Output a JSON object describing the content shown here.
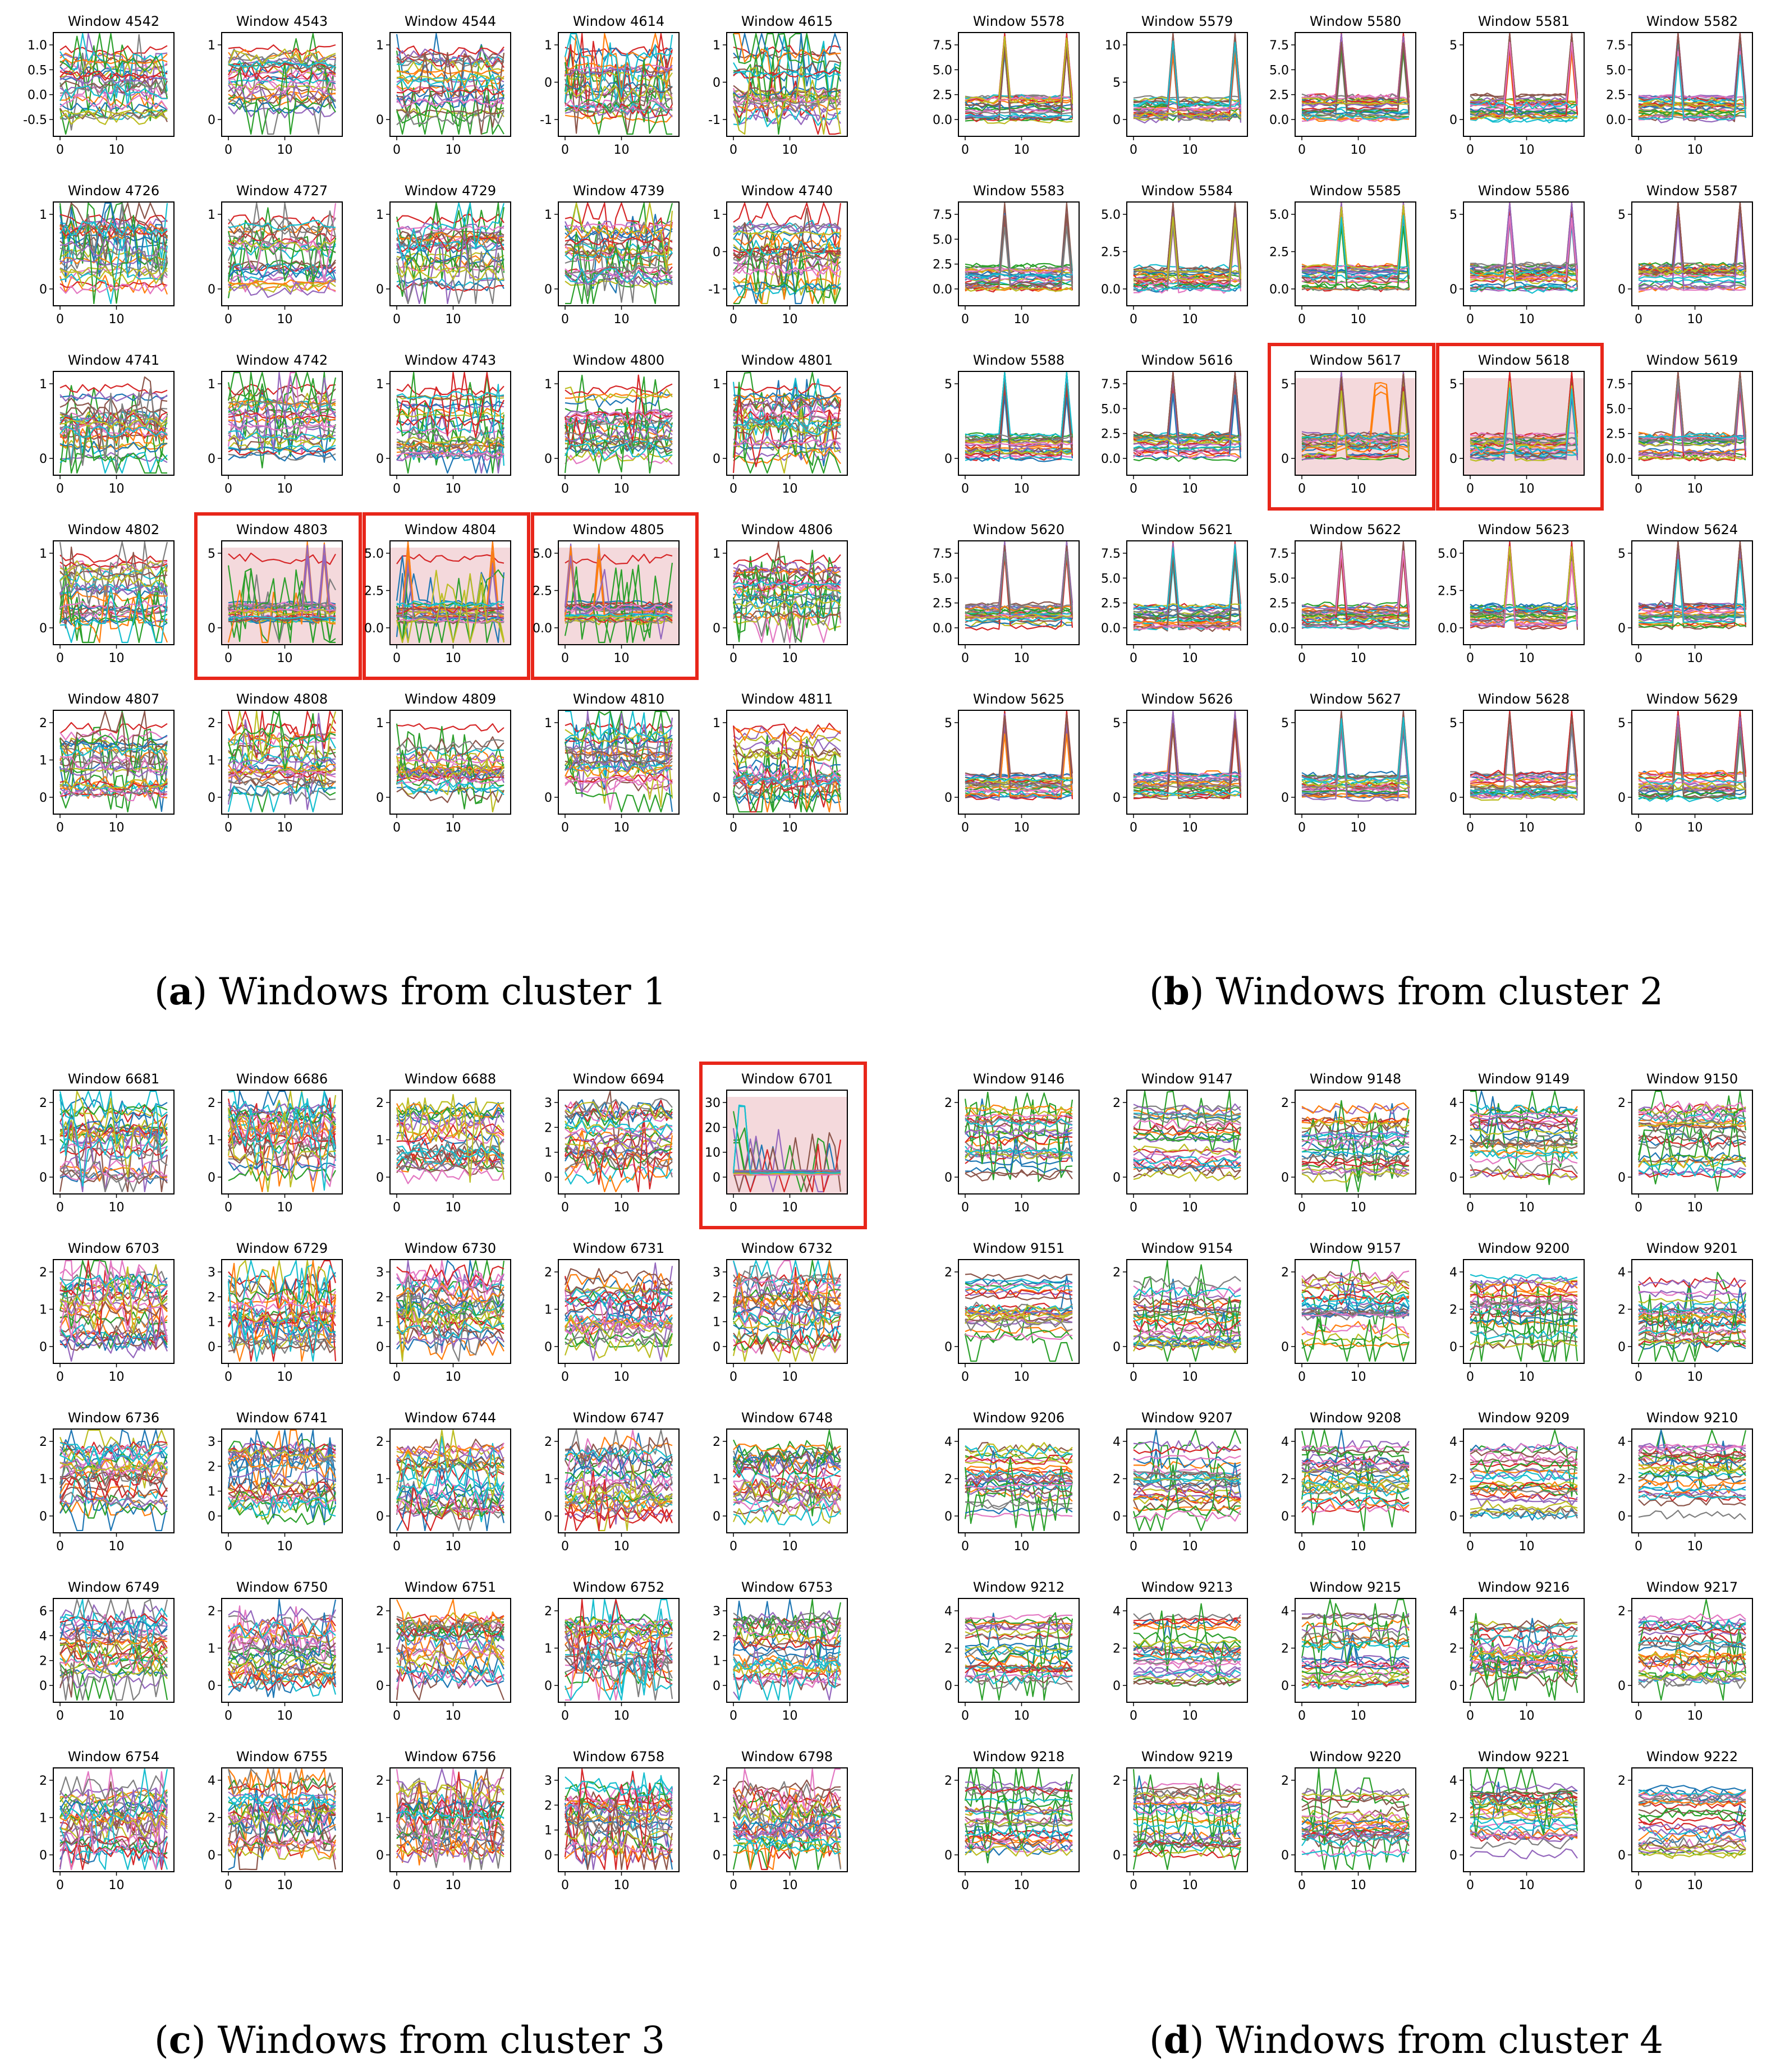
{
  "panels": [
    {
      "letter": "a",
      "caption": "Windows from cluster 1",
      "titles": [
        "Window 4542",
        "Window 4543",
        "Window 4544",
        "Window 4614",
        "Window 4615",
        "Window 4726",
        "Window 4727",
        "Window 4729",
        "Window 4739",
        "Window 4740",
        "Window 4741",
        "Window 4742",
        "Window 4743",
        "Window 4800",
        "Window 4801",
        "Window 4802",
        "Window 4803",
        "Window 4804",
        "Window 4805",
        "Window 4806",
        "Window 4807",
        "Window 4808",
        "Window 4809",
        "Window 4810",
        "Window 4811"
      ],
      "highlighted": [
        "Window 4803",
        "Window 4804",
        "Window 4805"
      ],
      "yticks": [
        [
          "1.0",
          "0.5",
          "0.0",
          "-0.5"
        ],
        [
          "1",
          "0"
        ],
        [
          "1",
          "0"
        ],
        [
          "1",
          "0",
          "-1"
        ],
        [
          "1",
          "0",
          "-1"
        ],
        [
          "1",
          "0"
        ],
        [
          "1",
          "0"
        ],
        [
          "1",
          "0"
        ],
        [
          "1",
          "0"
        ],
        [
          "1",
          "0",
          "-1"
        ],
        [
          "1",
          "0"
        ],
        [
          "1",
          "0"
        ],
        [
          "1",
          "0"
        ],
        [
          "1",
          "0"
        ],
        [
          "1",
          "0"
        ],
        [
          "1",
          "0"
        ],
        [
          "5",
          "0"
        ],
        [
          "5.0",
          "2.5",
          "0.0"
        ],
        [
          "5.0",
          "2.5",
          "0.0"
        ],
        [
          "1",
          "0"
        ],
        [
          "2",
          "1",
          "0"
        ],
        [
          "2",
          "1",
          "0"
        ],
        [
          "1",
          "0"
        ],
        [
          "1",
          "0"
        ],
        [
          "1",
          "0"
        ]
      ]
    },
    {
      "letter": "b",
      "caption": "Windows from cluster 2",
      "titles": [
        "Window 5578",
        "Window 5579",
        "Window 5580",
        "Window 5581",
        "Window 5582",
        "Window 5583",
        "Window 5584",
        "Window 5585",
        "Window 5586",
        "Window 5587",
        "Window 5588",
        "Window 5616",
        "Window 5617",
        "Window 5618",
        "Window 5619",
        "Window 5620",
        "Window 5621",
        "Window 5622",
        "Window 5623",
        "Window 5624",
        "Window 5625",
        "Window 5626",
        "Window 5627",
        "Window 5628",
        "Window 5629"
      ],
      "highlighted": [
        "Window 5617",
        "Window 5618"
      ],
      "yticks": [
        [
          "7.5",
          "5.0",
          "2.5",
          "0.0"
        ],
        [
          "10",
          "5",
          "0"
        ],
        [
          "7.5",
          "5.0",
          "2.5",
          "0.0"
        ],
        [
          "5",
          "0"
        ],
        [
          "7.5",
          "5.0",
          "2.5",
          "0.0"
        ],
        [
          "7.5",
          "5.0",
          "2.5",
          "0.0"
        ],
        [
          "5.0",
          "2.5",
          "0.0"
        ],
        [
          "5.0",
          "2.5",
          "0.0"
        ],
        [
          "5",
          "0"
        ],
        [
          "5",
          "0"
        ],
        [
          "5",
          "0"
        ],
        [
          "7.5",
          "5.0",
          "2.5",
          "0.0"
        ],
        [
          "5",
          "0"
        ],
        [
          "5",
          "0"
        ],
        [
          "7.5",
          "5.0",
          "2.5",
          "0.0"
        ],
        [
          "7.5",
          "5.0",
          "2.5",
          "0.0"
        ],
        [
          "7.5",
          "5.0",
          "2.5",
          "0.0"
        ],
        [
          "7.5",
          "5.0",
          "2.5",
          "0.0"
        ],
        [
          "5.0",
          "2.5",
          "0.0"
        ],
        [
          "5",
          "0"
        ],
        [
          "5",
          "0"
        ],
        [
          "5",
          "0"
        ],
        [
          "5",
          "0"
        ],
        [
          "5",
          "0"
        ],
        [
          "5",
          "0"
        ]
      ]
    },
    {
      "letter": "c",
      "caption": "Windows from cluster 3",
      "titles": [
        "Window 6681",
        "Window 6686",
        "Window 6688",
        "Window 6694",
        "Window 6701",
        "Window 6703",
        "Window 6729",
        "Window 6730",
        "Window 6731",
        "Window 6732",
        "Window 6736",
        "Window 6741",
        "Window 6744",
        "Window 6747",
        "Window 6748",
        "Window 6749",
        "Window 6750",
        "Window 6751",
        "Window 6752",
        "Window 6753",
        "Window 6754",
        "Window 6755",
        "Window 6756",
        "Window 6758",
        "Window 6798"
      ],
      "highlighted": [
        "Window 6701"
      ],
      "yticks": [
        [
          "2",
          "1",
          "0"
        ],
        [
          "2",
          "1",
          "0"
        ],
        [
          "2",
          "1",
          "0"
        ],
        [
          "3",
          "2",
          "1",
          "0"
        ],
        [
          "30",
          "20",
          "10",
          "0"
        ],
        [
          "2",
          "1",
          "0"
        ],
        [
          "3",
          "2",
          "1",
          "0"
        ],
        [
          "3",
          "2",
          "1",
          "0"
        ],
        [
          "2",
          "1",
          "0"
        ],
        [
          "3",
          "2",
          "1",
          "0"
        ],
        [
          "2",
          "1",
          "0"
        ],
        [
          "3",
          "2",
          "1",
          "0"
        ],
        [
          "2",
          "1",
          "0"
        ],
        [
          "2",
          "1",
          "0"
        ],
        [
          "2",
          "1",
          "0"
        ],
        [
          "6",
          "4",
          "2",
          "0"
        ],
        [
          "2",
          "1",
          "0"
        ],
        [
          "2",
          "1",
          "0"
        ],
        [
          "2",
          "1",
          "0"
        ],
        [
          "3",
          "2",
          "1",
          "0"
        ],
        [
          "2",
          "1",
          "0"
        ],
        [
          "4",
          "2",
          "0"
        ],
        [
          "2",
          "1",
          "0"
        ],
        [
          "3",
          "2",
          "1",
          "0"
        ],
        [
          "2",
          "1",
          "0"
        ]
      ]
    },
    {
      "letter": "d",
      "caption": "Windows from cluster 4",
      "titles": [
        "Window 9146",
        "Window 9147",
        "Window 9148",
        "Window 9149",
        "Window 9150",
        "Window 9151",
        "Window 9154",
        "Window 9157",
        "Window 9200",
        "Window 9201",
        "Window 9206",
        "Window 9207",
        "Window 9208",
        "Window 9209",
        "Window 9210",
        "Window 9212",
        "Window 9213",
        "Window 9215",
        "Window 9216",
        "Window 9217",
        "Window 9218",
        "Window 9219",
        "Window 9220",
        "Window 9221",
        "Window 9222"
      ],
      "highlighted": [],
      "yticks": [
        [
          "2",
          "0"
        ],
        [
          "2",
          "0"
        ],
        [
          "2",
          "0"
        ],
        [
          "4",
          "2",
          "0"
        ],
        [
          "2",
          "0"
        ],
        [
          "2",
          "0"
        ],
        [
          "2",
          "0"
        ],
        [
          "2",
          "0"
        ],
        [
          "4",
          "2",
          "0"
        ],
        [
          "4",
          "2",
          "0"
        ],
        [
          "4",
          "2",
          "0"
        ],
        [
          "4",
          "2",
          "0"
        ],
        [
          "4",
          "2",
          "0"
        ],
        [
          "4",
          "2",
          "0"
        ],
        [
          "4",
          "2",
          "0"
        ],
        [
          "4",
          "2",
          "0"
        ],
        [
          "4",
          "2",
          "0"
        ],
        [
          "4",
          "2",
          "0"
        ],
        [
          "4",
          "2",
          "0"
        ],
        [
          "2",
          "0"
        ],
        [
          "2",
          "0"
        ],
        [
          "2",
          "0"
        ],
        [
          "2",
          "0"
        ],
        [
          "4",
          "2",
          "0"
        ],
        [
          "2",
          "0"
        ]
      ]
    }
  ],
  "xticks": [
    "0",
    "10"
  ],
  "colors": {
    "series": [
      "#1f77b4",
      "#ff7f0e",
      "#2ca02c",
      "#d62728",
      "#9467bd",
      "#8c564b",
      "#e377c2",
      "#7f7f7f",
      "#bcbd22",
      "#17becf"
    ],
    "highlight_border": "#e8261a",
    "highlight_fill": "#f4d9dc"
  },
  "chart_data": {
    "type": "line",
    "note_grid": "5x5 small multiples per panel, multivariate time series windows",
    "x_range": [
      0,
      19
    ],
    "series_per_window": 30
  }
}
